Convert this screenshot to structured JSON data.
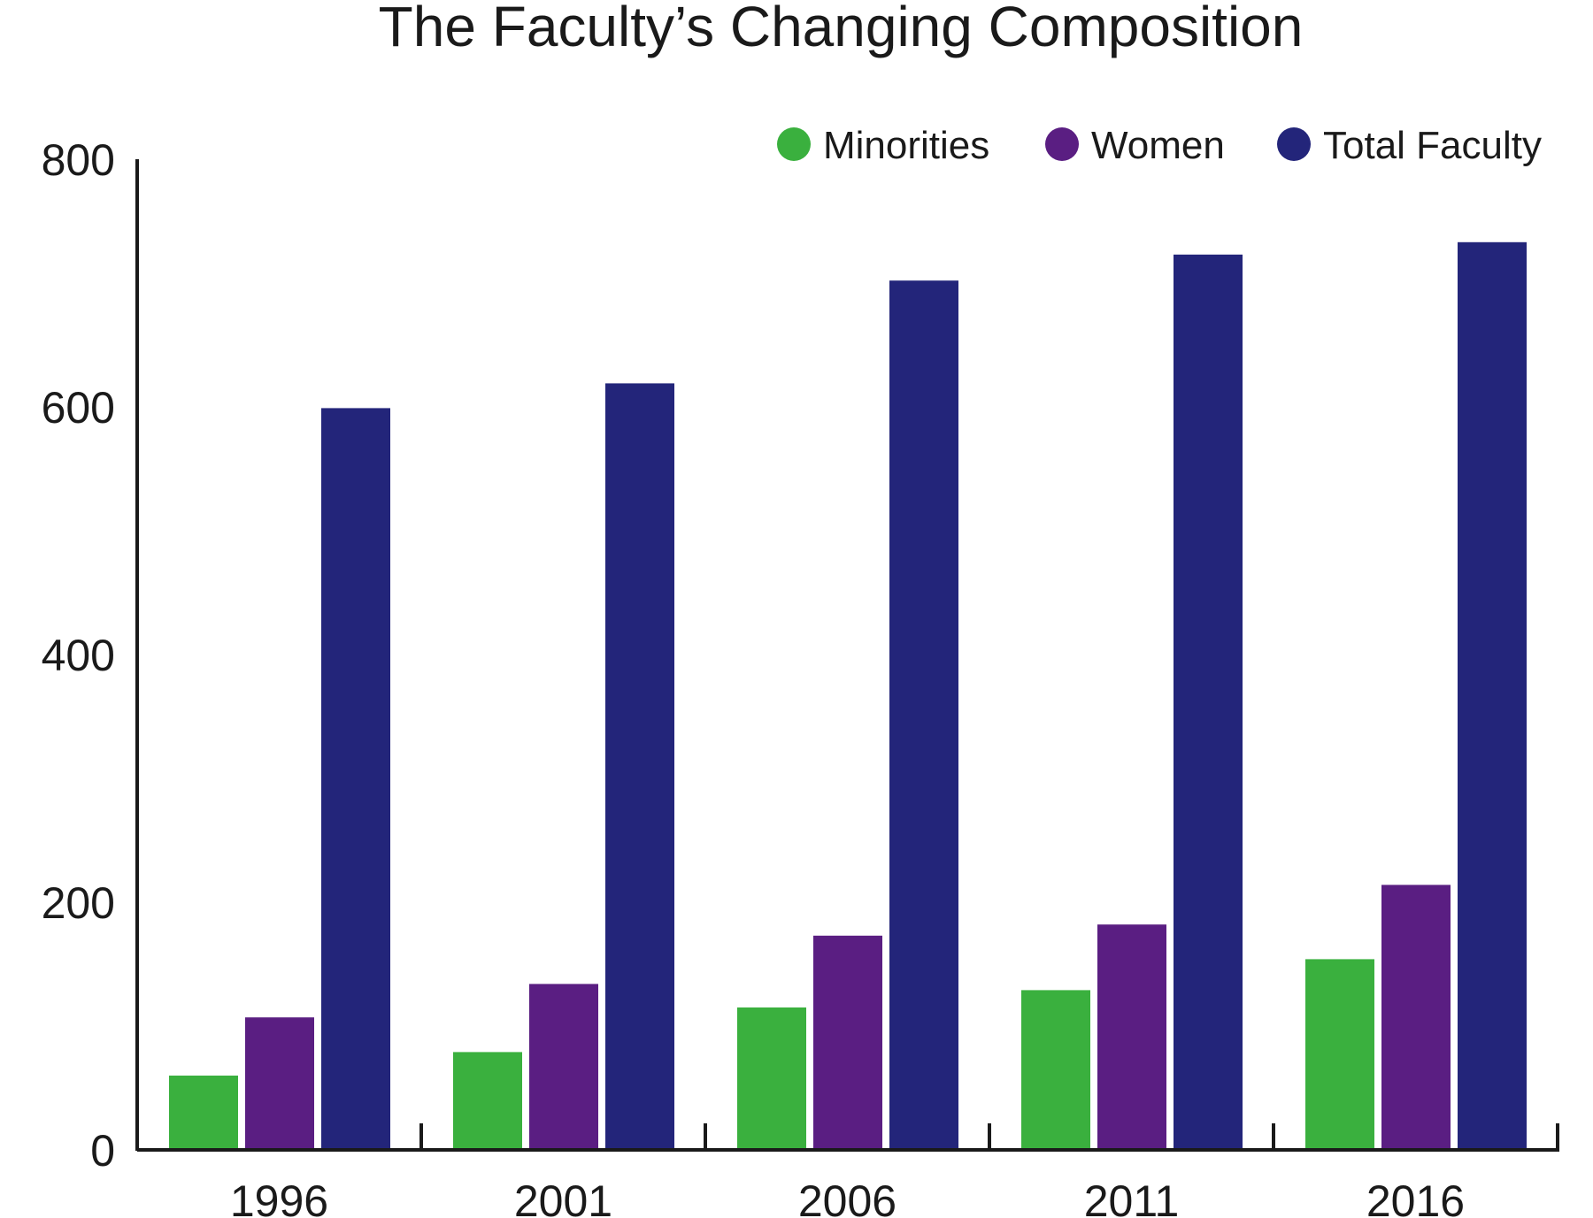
{
  "chart_data": {
    "type": "bar",
    "title": "The Faculty’s Changing Composition",
    "xlabel": "",
    "ylabel": "",
    "categories": [
      "1996",
      "2001",
      "2006",
      "2011",
      "2016"
    ],
    "series": [
      {
        "name": "Minorities",
        "color": "#3ab03e",
        "values": [
          60,
          79,
          115,
          129,
          154
        ]
      },
      {
        "name": "Women",
        "color": "#5a1e82",
        "values": [
          107,
          134,
          173,
          182,
          214
        ]
      },
      {
        "name": "Total Faculty",
        "color": "#23257a",
        "values": [
          599,
          619,
          702,
          723,
          733
        ]
      }
    ],
    "ylim": [
      0,
      800
    ],
    "yticks": [
      "0",
      "200",
      "400",
      "600",
      "800"
    ],
    "grid": false,
    "legend_position": "top-right"
  }
}
